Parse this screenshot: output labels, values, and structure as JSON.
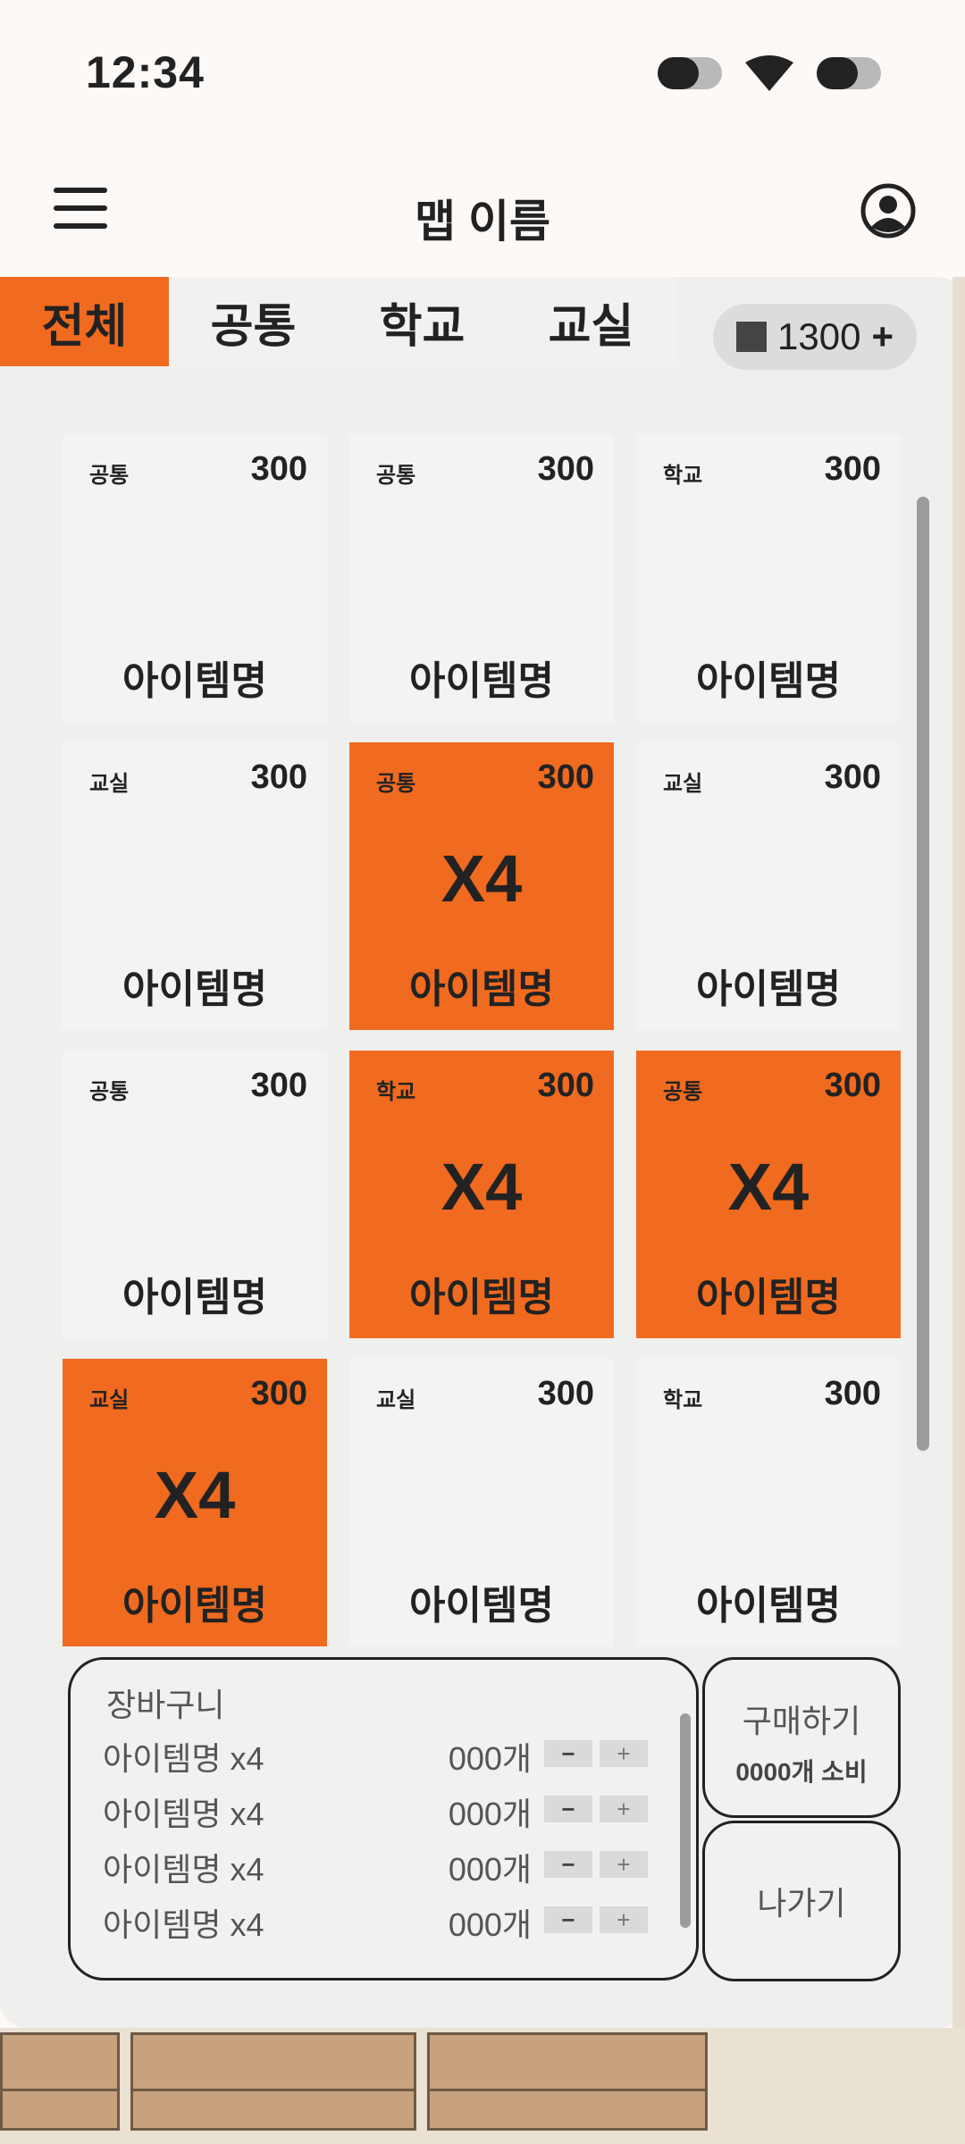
{
  "status_bar": {
    "time": "12:34"
  },
  "app_bar": {
    "title": "맵 이름"
  },
  "tabs": [
    {
      "label": "전체",
      "active": true
    },
    {
      "label": "공통",
      "active": false
    },
    {
      "label": "학교",
      "active": false
    },
    {
      "label": "교실",
      "active": false
    }
  ],
  "coins": {
    "amount": "1300",
    "add_label": "+"
  },
  "items": [
    {
      "category": "공통",
      "price": "300",
      "name": "아이템명",
      "selected": false,
      "qty": ""
    },
    {
      "category": "공통",
      "price": "300",
      "name": "아이템명",
      "selected": false,
      "qty": ""
    },
    {
      "category": "학교",
      "price": "300",
      "name": "아이템명",
      "selected": false,
      "qty": ""
    },
    {
      "category": "교실",
      "price": "300",
      "name": "아이템명",
      "selected": false,
      "qty": ""
    },
    {
      "category": "공통",
      "price": "300",
      "name": "아이템명",
      "selected": true,
      "qty": "X4"
    },
    {
      "category": "교실",
      "price": "300",
      "name": "아이템명",
      "selected": false,
      "qty": ""
    },
    {
      "category": "공통",
      "price": "300",
      "name": "아이템명",
      "selected": false,
      "qty": ""
    },
    {
      "category": "학교",
      "price": "300",
      "name": "아이템명",
      "selected": true,
      "qty": "X4"
    },
    {
      "category": "공통",
      "price": "300",
      "name": "아이템명",
      "selected": true,
      "qty": "X4"
    },
    {
      "category": "교실",
      "price": "300",
      "name": "아이템명",
      "selected": true,
      "qty": "X4"
    },
    {
      "category": "교실",
      "price": "300",
      "name": "아이템명",
      "selected": false,
      "qty": ""
    },
    {
      "category": "학교",
      "price": "300",
      "name": "아이템명",
      "selected": false,
      "qty": ""
    }
  ],
  "cart": {
    "title": "장바구니",
    "rows": [
      {
        "name": "아이템명 x4",
        "count": "000개",
        "minus": "−",
        "plus": "+"
      },
      {
        "name": "아이템명 x4",
        "count": "000개",
        "minus": "−",
        "plus": "+"
      },
      {
        "name": "아이템명 x4",
        "count": "000개",
        "minus": "−",
        "plus": "+"
      },
      {
        "name": "아이템명 x4",
        "count": "000개",
        "minus": "−",
        "plus": "+"
      }
    ]
  },
  "buy": {
    "label": "구매하기",
    "sub": "0000개 소비"
  },
  "exit": {
    "label": "나가기"
  },
  "colors": {
    "accent": "#f06a1f",
    "card": "#f3f3f3",
    "panel": "#efefed"
  },
  "icons": [
    "menu-icon",
    "profile-icon",
    "wifi-icon",
    "coin-icon"
  ]
}
